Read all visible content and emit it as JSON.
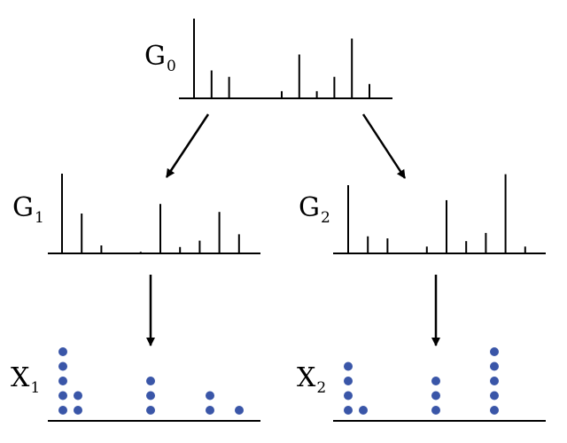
{
  "labels": {
    "g0": {
      "main": "G",
      "sub": "0"
    },
    "g1": {
      "main": "G",
      "sub": "1"
    },
    "g2": {
      "main": "G",
      "sub": "2"
    },
    "x1": {
      "main": "X",
      "sub": "1"
    },
    "x2": {
      "main": "X",
      "sub": "2"
    }
  },
  "colors": {
    "ink": "#000000",
    "dot": "#3a56a8"
  },
  "diagram": {
    "g0_spikes": [
      1.0,
      0.35,
      0.27,
      0.0,
      0.0,
      0.09,
      0.55,
      0.09,
      0.27,
      0.75,
      0.18
    ],
    "g1_spikes": [
      1.0,
      0.5,
      0.1,
      0.0,
      0.02,
      0.62,
      0.08,
      0.16,
      0.52,
      0.24
    ],
    "g2_spikes": [
      1.0,
      0.25,
      0.22,
      0.0,
      0.1,
      0.78,
      0.18,
      0.3,
      1.16,
      0.1
    ],
    "x1_counts": [
      5,
      2,
      3,
      2,
      1
    ],
    "x2_counts": [
      4,
      1,
      3,
      5
    ]
  }
}
